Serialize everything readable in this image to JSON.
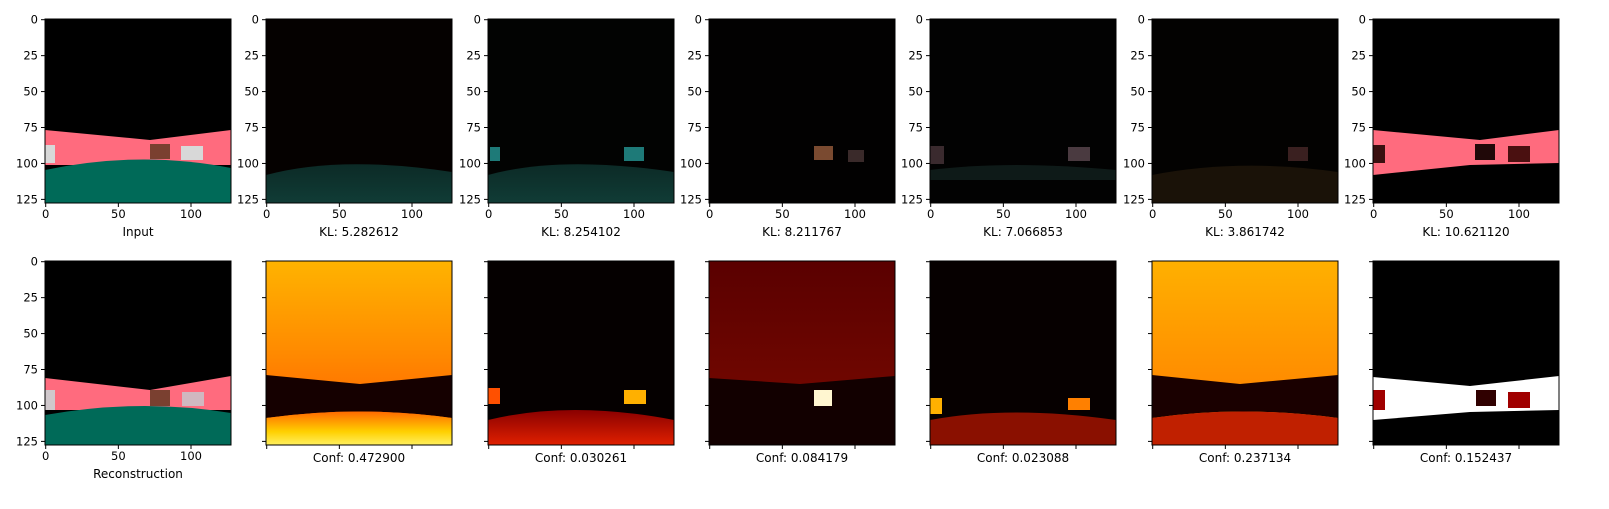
{
  "top_row": [
    {
      "label": "Input",
      "image": "input-road-scene"
    },
    {
      "label": "KL: 5.282612",
      "image": "latent-decode-1"
    },
    {
      "label": "KL: 8.254102",
      "image": "latent-decode-2"
    },
    {
      "label": "KL: 8.211767",
      "image": "latent-decode-3"
    },
    {
      "label": "KL: 7.066853",
      "image": "latent-decode-4"
    },
    {
      "label": "KL: 3.861742",
      "image": "latent-decode-5"
    },
    {
      "label": "KL: 10.621120",
      "image": "latent-decode-6"
    }
  ],
  "bottom_row": [
    {
      "label": "Reconstruction",
      "image": "reconstructed-road-scene"
    },
    {
      "label": "Conf: 0.472900",
      "image": "confidence-map-1"
    },
    {
      "label": "Conf: 0.030261",
      "image": "confidence-map-2"
    },
    {
      "label": "Conf: 0.084179",
      "image": "confidence-map-3"
    },
    {
      "label": "Conf: 0.023088",
      "image": "confidence-map-4"
    },
    {
      "label": "Conf: 0.237134",
      "image": "confidence-map-5"
    },
    {
      "label": "Conf: 0.152437",
      "image": "confidence-map-6"
    }
  ],
  "axes": {
    "x_ticks": [
      "0",
      "50",
      "100"
    ],
    "y_ticks": [
      "0",
      "25",
      "50",
      "75",
      "100",
      "125"
    ],
    "x_tick_values": [
      0,
      50,
      100
    ],
    "y_tick_values": [
      0,
      25,
      50,
      75,
      100,
      125
    ]
  },
  "colors": {
    "road": "#ff6b7e",
    "ground": "#006a58",
    "background": "#000000"
  }
}
